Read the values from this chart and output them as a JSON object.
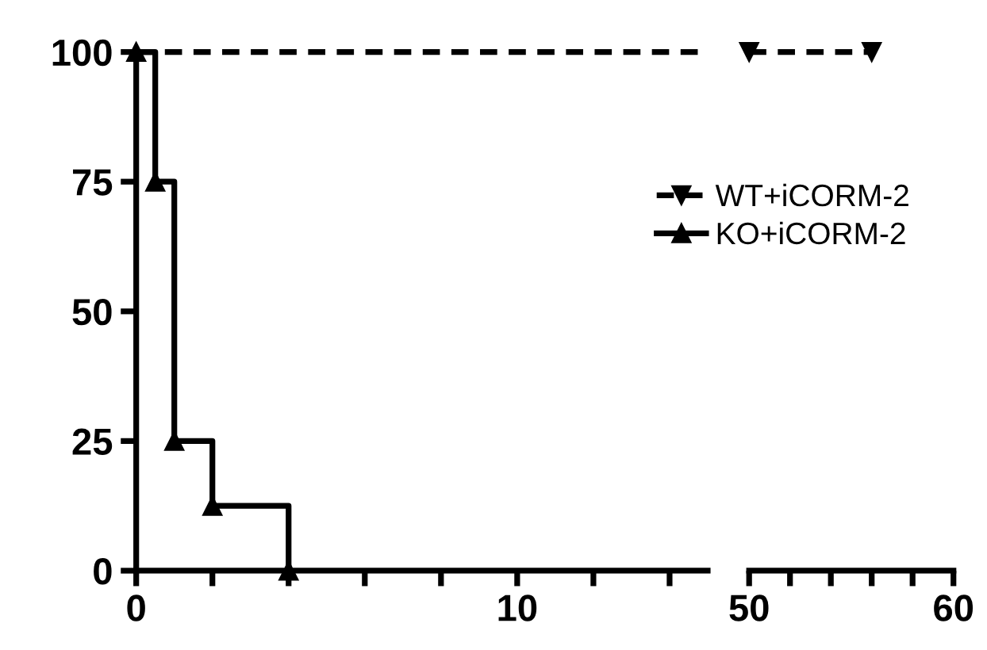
{
  "chart_data": [
    {
      "type": "step",
      "xlim": [
        0,
        15
      ],
      "ylim": [
        0,
        100
      ],
      "xticks": [
        0,
        {
          "value": 2,
          "label": null
        },
        {
          "value": 4,
          "label": null
        },
        {
          "value": 6,
          "label": null
        },
        {
          "value": 8,
          "label": null
        },
        10,
        {
          "value": 12,
          "label": null
        },
        {
          "value": 14,
          "label": null
        }
      ],
      "yticks": [
        0,
        25,
        50,
        75,
        100
      ],
      "grid": false,
      "series": [
        {
          "color": "#000000",
          "line_style": "dashed",
          "x": [
            0,
            15
          ],
          "values": [
            100,
            100
          ]
        },
        {
          "name": "KO+iCORM-2",
          "color": "#000000",
          "line_style": "solid",
          "marker": "triangle",
          "x": [
            0,
            0.5,
            1,
            2,
            4
          ],
          "values": [
            100,
            75,
            25,
            12.5,
            0
          ]
        }
      ]
    },
    {
      "type": "step",
      "xlim": [
        50,
        60
      ],
      "ylim": [
        0,
        100
      ],
      "tick_labels": "x",
      "xticks": [
        50,
        {
          "value": 52,
          "label": null
        },
        {
          "value": 54,
          "label": null
        },
        {
          "value": 56,
          "label": null
        },
        {
          "value": 58,
          "label": null
        },
        60
      ],
      "grid": false,
      "legend": "top left",
      "series": [
        {
          "name": "WT+iCORM-2",
          "color": "#000000",
          "line_style": "dashed",
          "marker": "triangle_down",
          "x": [
            50,
            56
          ],
          "values": [
            100,
            100
          ]
        }
      ]
    }
  ]
}
